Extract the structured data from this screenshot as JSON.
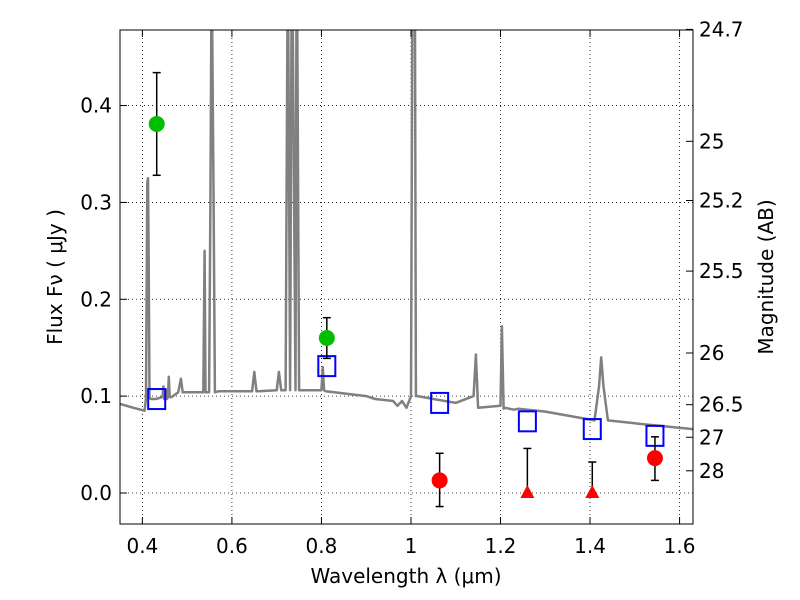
{
  "chart_data": {
    "type": "scatter",
    "xlabel": "Wavelength  λ (μm)",
    "ylabel": "Flux  Fν ( μJy )",
    "ylabel_right": "Magnitude (AB)",
    "xlim": [
      0.35,
      1.63
    ],
    "ylim": [
      -0.032,
      0.478
    ],
    "grid": true,
    "x_ticks": [
      {
        "value": 0.4,
        "label": "0.4"
      },
      {
        "value": 0.6,
        "label": "0.6"
      },
      {
        "value": 0.8,
        "label": "0.8"
      },
      {
        "value": 1.0,
        "label": "1"
      },
      {
        "value": 1.2,
        "label": "1.2"
      },
      {
        "value": 1.4,
        "label": "1.4"
      },
      {
        "value": 1.6,
        "label": "1.6"
      }
    ],
    "y_ticks": [
      {
        "value": 0.0,
        "label": "0.0"
      },
      {
        "value": 0.1,
        "label": "0.1"
      },
      {
        "value": 0.2,
        "label": "0.2"
      },
      {
        "value": 0.3,
        "label": "0.3"
      },
      {
        "value": 0.4,
        "label": "0.4"
      }
    ],
    "mag_ticks": [
      {
        "mag": 24.7,
        "label": "24.7"
      },
      {
        "mag": 25.0,
        "label": "25"
      },
      {
        "mag": 25.2,
        "label": "25.2"
      },
      {
        "mag": 25.5,
        "label": "25.5"
      },
      {
        "mag": 26.0,
        "label": "26"
      },
      {
        "mag": 26.5,
        "label": "26.5"
      },
      {
        "mag": 27.0,
        "label": "27"
      },
      {
        "mag": 28.0,
        "label": "28"
      }
    ],
    "colors": {
      "spectrum": "#808080",
      "model": "#0000ff",
      "detection": "#00bf00",
      "nondetection": "#ff0000",
      "errorbar": "#000000",
      "grid": "#000000"
    },
    "series": [
      {
        "marker": "line",
        "x": [
          0.35,
          0.38,
          0.405,
          0.408,
          0.411,
          0.4125,
          0.414,
          0.416,
          0.42,
          0.43,
          0.445,
          0.447,
          0.449,
          0.451,
          0.453,
          0.455,
          0.457,
          0.459,
          0.461,
          0.465,
          0.48,
          0.486,
          0.49,
          0.5,
          0.52,
          0.536,
          0.539,
          0.541,
          0.544,
          0.549,
          0.552,
          0.554,
          0.556,
          0.559,
          0.562,
          0.57,
          0.6,
          0.645,
          0.65,
          0.655,
          0.66,
          0.7,
          0.705,
          0.71,
          0.72,
          0.724,
          0.726,
          0.73,
          0.733,
          0.736,
          0.742,
          0.744,
          0.746,
          0.75,
          0.755,
          0.8,
          0.803,
          0.806,
          0.81,
          0.9,
          0.92,
          0.96,
          0.97,
          0.98,
          0.99,
          1.0,
          1.003,
          1.005,
          1.007,
          1.009,
          1.011,
          1.015,
          1.05,
          1.1,
          1.14,
          1.145,
          1.15,
          1.2,
          1.203,
          1.207,
          1.21,
          1.23,
          1.24,
          1.3,
          1.41,
          1.42,
          1.425,
          1.43,
          1.44,
          1.5,
          1.63
        ],
        "y": [
          0.092,
          0.088,
          0.085,
          0.098,
          0.32,
          0.325,
          0.24,
          0.098,
          0.097,
          0.097,
          0.099,
          0.11,
          0.097,
          0.097,
          0.107,
          0.097,
          0.099,
          0.12,
          0.099,
          0.099,
          0.104,
          0.118,
          0.104,
          0.104,
          0.104,
          0.104,
          0.25,
          0.104,
          0.104,
          0.104,
          0.3,
          0.48,
          0.48,
          0.3,
          0.104,
          0.105,
          0.105,
          0.105,
          0.125,
          0.105,
          0.105,
          0.106,
          0.125,
          0.106,
          0.106,
          0.48,
          0.48,
          0.106,
          0.48,
          0.48,
          0.106,
          0.48,
          0.48,
          0.106,
          0.106,
          0.106,
          0.13,
          0.106,
          0.105,
          0.1,
          0.097,
          0.095,
          0.09,
          0.095,
          0.088,
          0.1,
          0.48,
          0.48,
          0.48,
          0.48,
          0.1,
          0.1,
          0.097,
          0.093,
          0.1,
          0.143,
          0.088,
          0.09,
          0.172,
          0.087,
          0.088,
          0.086,
          0.087,
          0.084,
          0.075,
          0.11,
          0.14,
          0.11,
          0.075,
          0.072,
          0.066
        ]
      },
      {
        "marker": "open-square",
        "x": [
          0.432,
          0.812,
          1.064,
          1.26,
          1.405,
          1.545
        ],
        "y": [
          0.097,
          0.131,
          0.093,
          0.074,
          0.066,
          0.059
        ]
      },
      {
        "marker": "circle-green",
        "x": [
          0.432,
          0.812
        ],
        "y": [
          0.381,
          0.16
        ],
        "yerr_low": [
          0.053,
          0.021
        ],
        "yerr_high": [
          0.053,
          0.021
        ]
      },
      {
        "marker": "circle-red",
        "x": [
          1.064,
          1.545
        ],
        "y": [
          0.013,
          0.036
        ],
        "yerr_low": [
          0.027,
          0.023
        ],
        "yerr_high": [
          0.028,
          0.022
        ]
      },
      {
        "marker": "triangle-red",
        "x": [
          1.26,
          1.405
        ],
        "y": [
          0.0,
          0.0
        ],
        "yerr_low": [
          0.0,
          0.0
        ],
        "yerr_high": [
          0.046,
          0.032
        ]
      }
    ]
  }
}
